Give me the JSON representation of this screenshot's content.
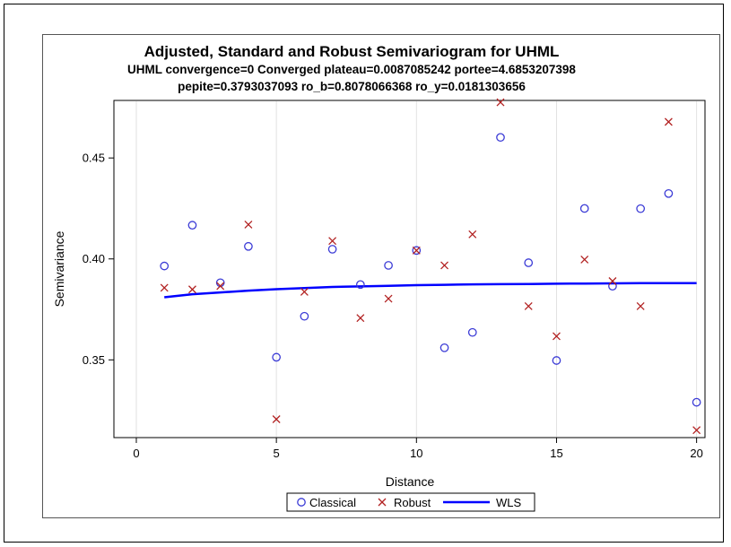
{
  "chart_data": {
    "type": "scatter",
    "title": "Adjusted, Standard and Robust Semivariogram for UHML",
    "subtitle1": "UHML convergence=0 Converged  plateau=0.0087085242 portee=4.6853207398",
    "subtitle2": "pepite=0.3793037093 ro_b=0.8078066368 ro_y=0.0181303656",
    "xlabel": "Distance",
    "ylabel": "Semivariance",
    "xlim": [
      -0.8,
      20.3
    ],
    "ylim": [
      0.3115,
      0.4785
    ],
    "xticks": [
      0,
      5,
      10,
      15,
      20
    ],
    "yticks": [
      0.35,
      0.4,
      0.45
    ],
    "ytick_labels": [
      "0.35",
      "0.40",
      "0.45"
    ],
    "grid": "vertical",
    "legend_position": "bottom",
    "series": [
      {
        "name": "Classical",
        "marker": "circle",
        "color": "#3b3bd6",
        "x": [
          1,
          2,
          3,
          4,
          5,
          6,
          7,
          8,
          9,
          10,
          11,
          12,
          13,
          14,
          15,
          16,
          17,
          18,
          19,
          20
        ],
        "y": [
          0.3965,
          0.4167,
          0.3882,
          0.4062,
          0.3513,
          0.3716,
          0.4048,
          0.3873,
          0.3968,
          0.4042,
          0.356,
          0.3636,
          0.4602,
          0.3981,
          0.3497,
          0.425,
          0.3865,
          0.4249,
          0.4324,
          0.329
        ]
      },
      {
        "name": "Robust",
        "marker": "x",
        "color": "#b22222",
        "x": [
          1,
          2,
          3,
          4,
          5,
          6,
          7,
          8,
          9,
          10,
          11,
          12,
          13,
          14,
          15,
          16,
          17,
          18,
          19,
          20
        ],
        "y": [
          0.3857,
          0.3849,
          0.3866,
          0.417,
          0.3206,
          0.3837,
          0.4089,
          0.3707,
          0.3803,
          0.4042,
          0.3968,
          0.4122,
          0.4776,
          0.3766,
          0.3617,
          0.3997,
          0.389,
          0.3766,
          0.4679,
          0.3152
        ]
      },
      {
        "name": "WLS",
        "marker": "line",
        "color": "#0000ff",
        "x": [
          1,
          2,
          3,
          4,
          5,
          6,
          7,
          8,
          9,
          10,
          11,
          12,
          13,
          14,
          15,
          16,
          17,
          18,
          19,
          20
        ],
        "y": [
          0.381,
          0.3825,
          0.3834,
          0.3843,
          0.385,
          0.3856,
          0.3861,
          0.3864,
          0.3867,
          0.387,
          0.3872,
          0.3874,
          0.3875,
          0.3876,
          0.3877,
          0.3878,
          0.3879,
          0.388,
          0.388,
          0.388
        ]
      }
    ]
  }
}
